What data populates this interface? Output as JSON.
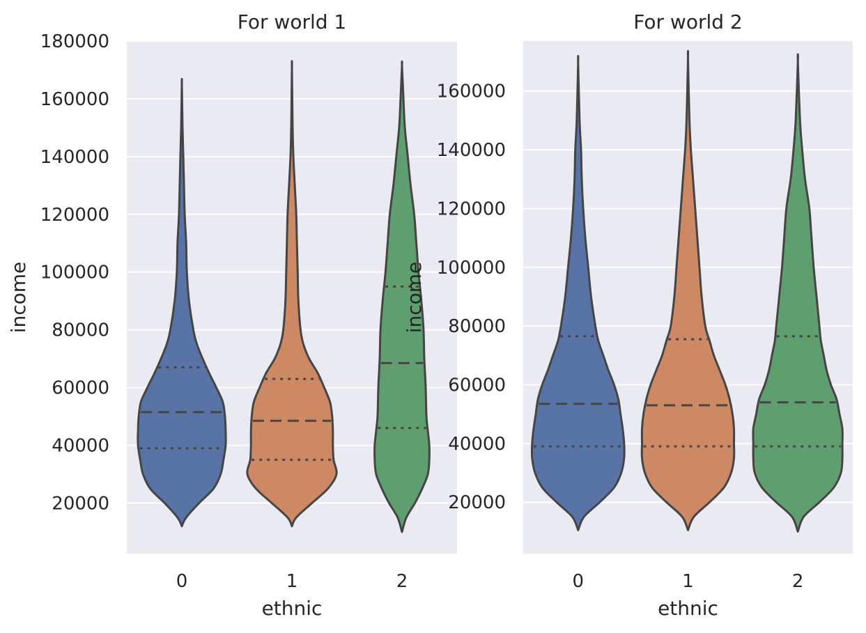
{
  "chart_data": [
    {
      "type": "violin",
      "title": "For world 1",
      "xlabel": "ethnic",
      "ylabel": "income",
      "categories": [
        "0",
        "1",
        "2"
      ],
      "ylim": [
        2500,
        180000
      ],
      "yticks": [
        20000,
        40000,
        60000,
        80000,
        100000,
        120000,
        140000,
        160000,
        180000
      ],
      "grid": true,
      "violins": [
        {
          "category": "0",
          "color": "#5874a6",
          "min": 12000,
          "max": 165000,
          "q1": 39000,
          "median": 51500,
          "q3": 67000,
          "profile": [
            [
              12000,
              0
            ],
            [
              15000,
              6
            ],
            [
              20000,
              24
            ],
            [
              25000,
              44
            ],
            [
              30000,
              54
            ],
            [
              35000,
              58
            ],
            [
              40000,
              61
            ],
            [
              45000,
              61
            ],
            [
              50000,
              60
            ],
            [
              55000,
              57
            ],
            [
              60000,
              48
            ],
            [
              65000,
              38
            ],
            [
              70000,
              29
            ],
            [
              75000,
              21
            ],
            [
              80000,
              16
            ],
            [
              90000,
              10
            ],
            [
              100000,
              7
            ],
            [
              110000,
              6
            ],
            [
              120000,
              4
            ],
            [
              130000,
              3
            ],
            [
              140000,
              2
            ],
            [
              150000,
              1
            ],
            [
              165000,
              0
            ]
          ]
        },
        {
          "category": "1",
          "color": "#cc8963",
          "min": 12000,
          "max": 170500,
          "q1": 35000,
          "median": 48500,
          "q3": 63000,
          "profile": [
            [
              12000,
              0
            ],
            [
              15000,
              6
            ],
            [
              20000,
              28
            ],
            [
              25000,
              50
            ],
            [
              30000,
              62
            ],
            [
              35000,
              58
            ],
            [
              40000,
              57
            ],
            [
              45000,
              57
            ],
            [
              50000,
              56
            ],
            [
              55000,
              53
            ],
            [
              60000,
              45
            ],
            [
              65000,
              36
            ],
            [
              70000,
              24
            ],
            [
              75000,
              16
            ],
            [
              80000,
              12
            ],
            [
              90000,
              9
            ],
            [
              100000,
              8
            ],
            [
              110000,
              7
            ],
            [
              120000,
              6
            ],
            [
              130000,
              4
            ],
            [
              140000,
              2
            ],
            [
              150000,
              1
            ],
            [
              170500,
              0
            ]
          ]
        },
        {
          "category": "2",
          "color": "#5f9e6e",
          "min": 10000,
          "max": 171500,
          "q1": 46000,
          "median": 68500,
          "q3": 95000,
          "profile": [
            [
              10000,
              0
            ],
            [
              15000,
              6
            ],
            [
              20000,
              18
            ],
            [
              25000,
              28
            ],
            [
              30000,
              36
            ],
            [
              35000,
              38
            ],
            [
              40000,
              38
            ],
            [
              45000,
              36
            ],
            [
              50000,
              34
            ],
            [
              60000,
              33
            ],
            [
              70000,
              31
            ],
            [
              80000,
              30
            ],
            [
              90000,
              27
            ],
            [
              100000,
              23
            ],
            [
              110000,
              20
            ],
            [
              120000,
              17
            ],
            [
              130000,
              12
            ],
            [
              140000,
              8
            ],
            [
              150000,
              4
            ],
            [
              160000,
              2
            ],
            [
              171500,
              0
            ]
          ]
        }
      ]
    },
    {
      "type": "violin",
      "title": "For world 2",
      "xlabel": "ethnic",
      "ylabel": "income",
      "categories": [
        "0",
        "1",
        "2"
      ],
      "ylim": [
        2500,
        177000
      ],
      "yticks": [
        20000,
        40000,
        60000,
        80000,
        100000,
        120000,
        140000,
        160000
      ],
      "grid": true,
      "violins": [
        {
          "category": "0",
          "color": "#5874a6",
          "min": 10500,
          "max": 169500,
          "q1": 39000,
          "median": 53500,
          "q3": 76500,
          "profile": [
            [
              10500,
              0
            ],
            [
              15000,
              8
            ],
            [
              20000,
              30
            ],
            [
              25000,
              50
            ],
            [
              30000,
              60
            ],
            [
              35000,
              64
            ],
            [
              40000,
              64
            ],
            [
              45000,
              62
            ],
            [
              50000,
              59
            ],
            [
              55000,
              56
            ],
            [
              60000,
              50
            ],
            [
              65000,
              42
            ],
            [
              70000,
              35
            ],
            [
              75000,
              28
            ],
            [
              80000,
              24
            ],
            [
              90000,
              18
            ],
            [
              100000,
              14
            ],
            [
              110000,
              10
            ],
            [
              120000,
              7
            ],
            [
              130000,
              5
            ],
            [
              140000,
              4
            ],
            [
              150000,
              2
            ],
            [
              169500,
              0
            ]
          ]
        },
        {
          "category": "1",
          "color": "#cc8963",
          "min": 10500,
          "max": 171000,
          "q1": 39000,
          "median": 53000,
          "q3": 75500,
          "profile": [
            [
              10500,
              0
            ],
            [
              15000,
              8
            ],
            [
              20000,
              30
            ],
            [
              25000,
              50
            ],
            [
              30000,
              60
            ],
            [
              35000,
              64
            ],
            [
              40000,
              64
            ],
            [
              45000,
              64
            ],
            [
              50000,
              62
            ],
            [
              55000,
              58
            ],
            [
              60000,
              52
            ],
            [
              65000,
              44
            ],
            [
              70000,
              36
            ],
            [
              75000,
              30
            ],
            [
              80000,
              24
            ],
            [
              90000,
              19
            ],
            [
              100000,
              16
            ],
            [
              110000,
              13
            ],
            [
              120000,
              10
            ],
            [
              130000,
              7
            ],
            [
              140000,
              4
            ],
            [
              150000,
              2
            ],
            [
              171000,
              0
            ]
          ]
        },
        {
          "category": "2",
          "color": "#5f9e6e",
          "min": 10000,
          "max": 170000,
          "q1": 39000,
          "median": 54000,
          "q3": 76500,
          "profile": [
            [
              10000,
              0
            ],
            [
              15000,
              8
            ],
            [
              20000,
              30
            ],
            [
              25000,
              50
            ],
            [
              30000,
              60
            ],
            [
              35000,
              62
            ],
            [
              40000,
              62
            ],
            [
              45000,
              62
            ],
            [
              50000,
              58
            ],
            [
              55000,
              54
            ],
            [
              60000,
              46
            ],
            [
              65000,
              40
            ],
            [
              70000,
              36
            ],
            [
              75000,
              32
            ],
            [
              80000,
              30
            ],
            [
              90000,
              26
            ],
            [
              100000,
              22
            ],
            [
              110000,
              19
            ],
            [
              120000,
              16
            ],
            [
              130000,
              10
            ],
            [
              140000,
              6
            ],
            [
              150000,
              3
            ],
            [
              170000,
              0
            ]
          ]
        }
      ]
    }
  ]
}
